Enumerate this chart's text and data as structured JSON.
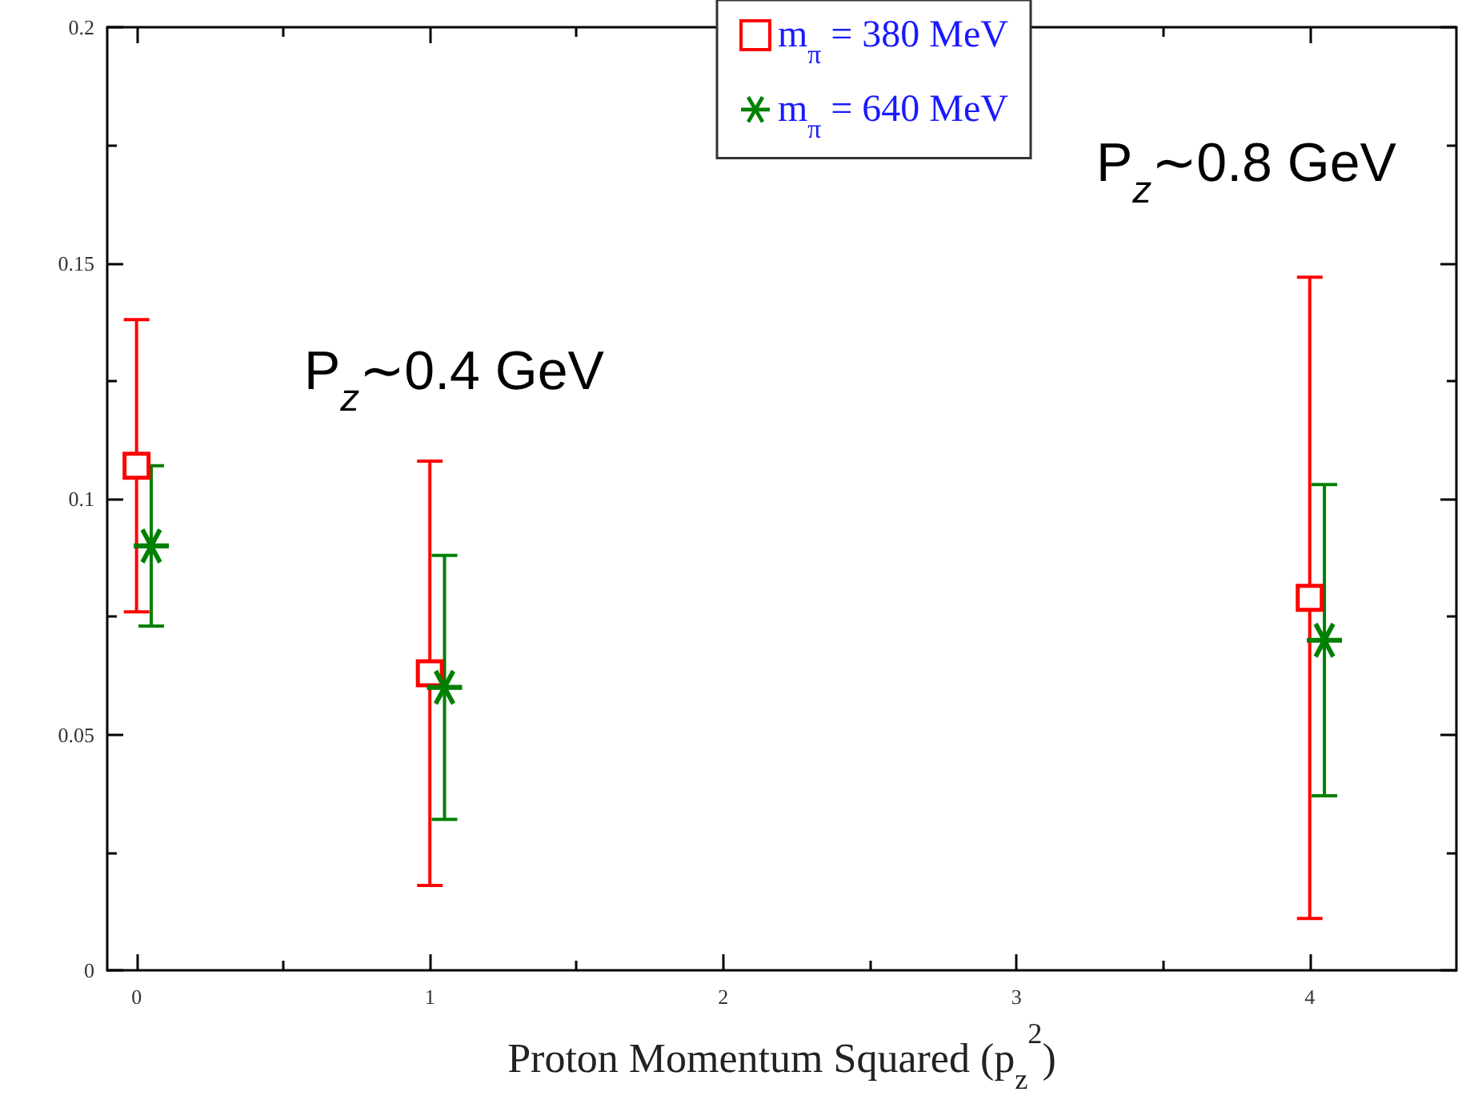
{
  "chart_data": {
    "type": "scatter",
    "xlabel": "Proton Momentum Squared (p$_{z}$$^{2}$)",
    "annotations": [
      "P$_{z}$∼0.4 GeV",
      "P$_{z}$∼0.8 GeV"
    ],
    "series": [
      {
        "name": "m$_{π}$ = 380 MeV",
        "color": "#ff0000",
        "marker": "square",
        "x": [
          0,
          1,
          4
        ],
        "values": [
          0.107,
          0.063,
          0.079
        ],
        "errors": [
          [
            0.076,
            0.138
          ],
          [
            0.018,
            0.108
          ],
          [
            0.011,
            0.147
          ]
        ]
      },
      {
        "name": "m$_{π}$ = 640 MeV",
        "color": "#008000",
        "marker": "cross",
        "x": [
          0.05,
          1.05,
          4.05
        ],
        "values": [
          0.09,
          0.06,
          0.07
        ],
        "errors": [
          [
            0.073,
            0.107
          ],
          [
            0.032,
            0.088
          ],
          [
            0.037,
            0.103
          ]
        ]
      }
    ],
    "xlim": [
      -0.1,
      4.5
    ],
    "xticks": [
      0,
      1,
      2,
      3,
      4
    ],
    "ylim": [
      0,
      0.2
    ],
    "yticks": [
      0,
      0.05,
      0.1,
      0.15,
      0.2
    ],
    "grid": false,
    "legend": "top right"
  }
}
